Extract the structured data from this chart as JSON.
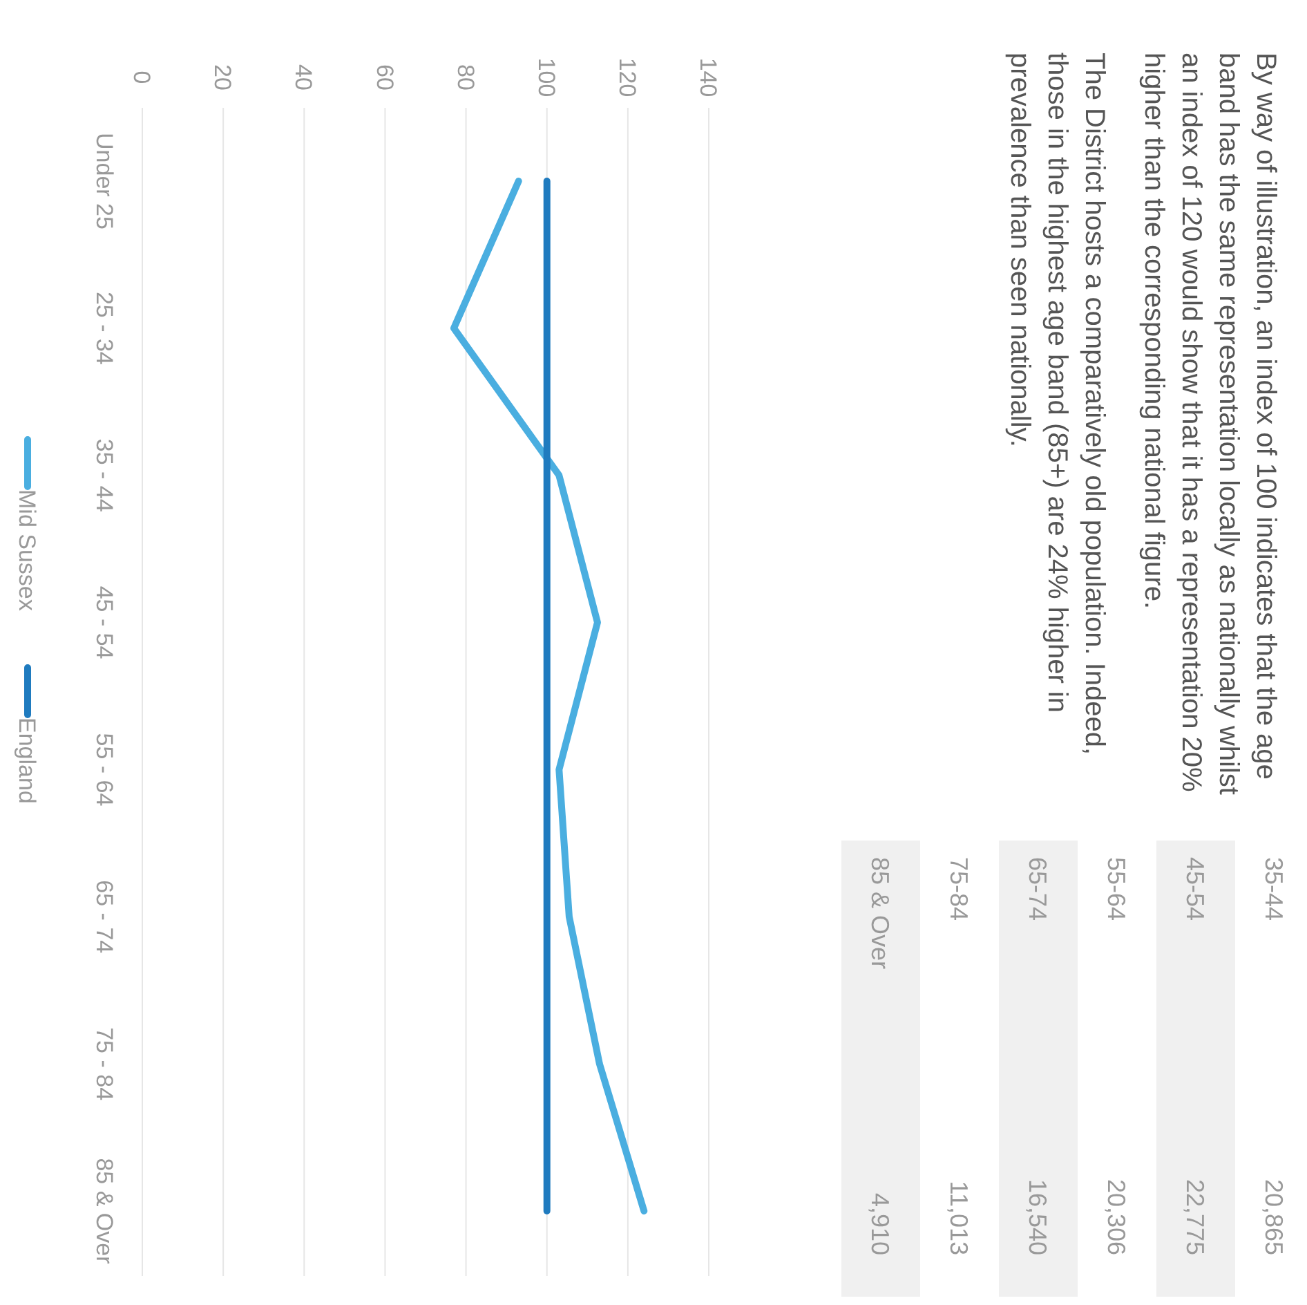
{
  "chart_data": [
    {
      "type": "line",
      "orientation": "horizontal",
      "categories": [
        "Under 25",
        "25 - 34",
        "35 - 44",
        "45 - 54",
        "55 - 64",
        "65 - 74",
        "75 - 84",
        "85 & Over"
      ],
      "series": [
        {
          "name": "Mid Sussex",
          "color": "#4aaee0",
          "values": [
            93,
            77,
            103,
            112.5,
            103,
            105.5,
            113,
            124
          ]
        },
        {
          "name": "England",
          "color": "#1f7bbf",
          "values": [
            100,
            100,
            100,
            100,
            100,
            100,
            100,
            100
          ]
        }
      ],
      "xlim": [
        0,
        140
      ],
      "xticks": [
        0,
        20,
        40,
        60,
        80,
        100,
        120,
        140
      ],
      "grid": "x",
      "legend": "left",
      "line_style": "solid"
    },
    {
      "type": "other",
      "annotations": [
        "By way of illustration, an index of 100 indicates that the age band has the same representation locally as nationally whilst an index of 120 would show that it has a representation 20% higher than the corresponding national figure.",
        "The District hosts a comparatively old population. Indeed, those in the highest age band (85+) are 24% higher in prevalence than seen nationally."
      ],
      "categories": [
        "35-44",
        "45-54",
        "55-64",
        "65-74",
        "75-84",
        "85 & Over"
      ],
      "value_labels": [
        "20,865",
        "22,775",
        "20,306",
        "16,540",
        "11,013",
        "4,910"
      ]
    }
  ]
}
